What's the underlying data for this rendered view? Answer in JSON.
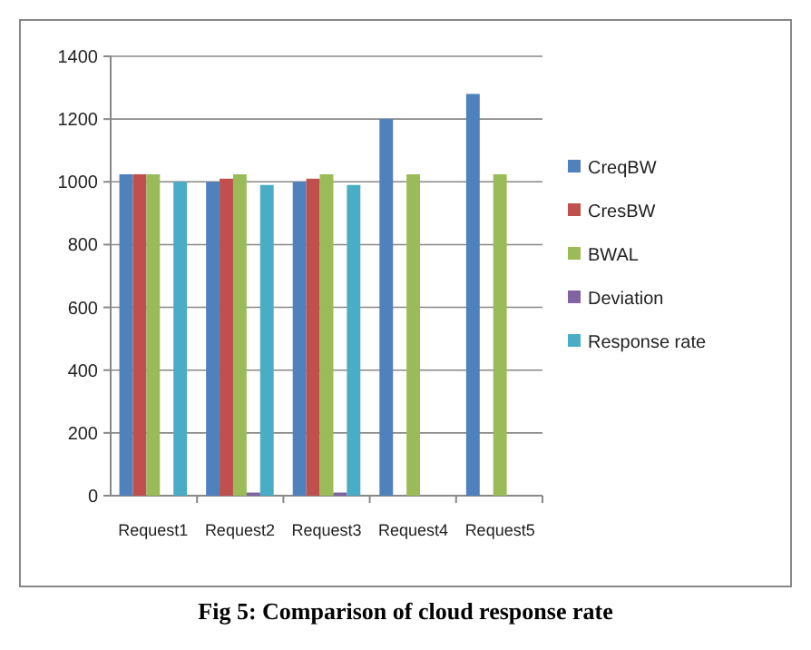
{
  "chart_data": {
    "type": "bar",
    "categories": [
      "Request1",
      "Request2",
      "Request3",
      "Request4",
      "Request5"
    ],
    "series": [
      {
        "name": "CreqBW",
        "color": "#4f81bd",
        "values": [
          1024,
          1000,
          1000,
          1200,
          1280
        ]
      },
      {
        "name": "CresBW",
        "color": "#c0504d",
        "values": [
          1024,
          1010,
          1010,
          0,
          0
        ]
      },
      {
        "name": "BWAL",
        "color": "#9bbb59",
        "values": [
          1024,
          1024,
          1024,
          1024,
          1024
        ]
      },
      {
        "name": "Deviation",
        "color": "#8064a2",
        "values": [
          0,
          10,
          10,
          0,
          0
        ]
      },
      {
        "name": "Response rate",
        "color": "#4bacc6",
        "values": [
          1000,
          990,
          990,
          0,
          0
        ]
      }
    ],
    "ylim": [
      0,
      1400
    ],
    "yticks": [
      0,
      200,
      400,
      600,
      800,
      1000,
      1200,
      1400
    ],
    "grid": "y",
    "legend": "right",
    "annotations": [
      "Fig 5: Comparison of cloud response rate"
    ]
  }
}
